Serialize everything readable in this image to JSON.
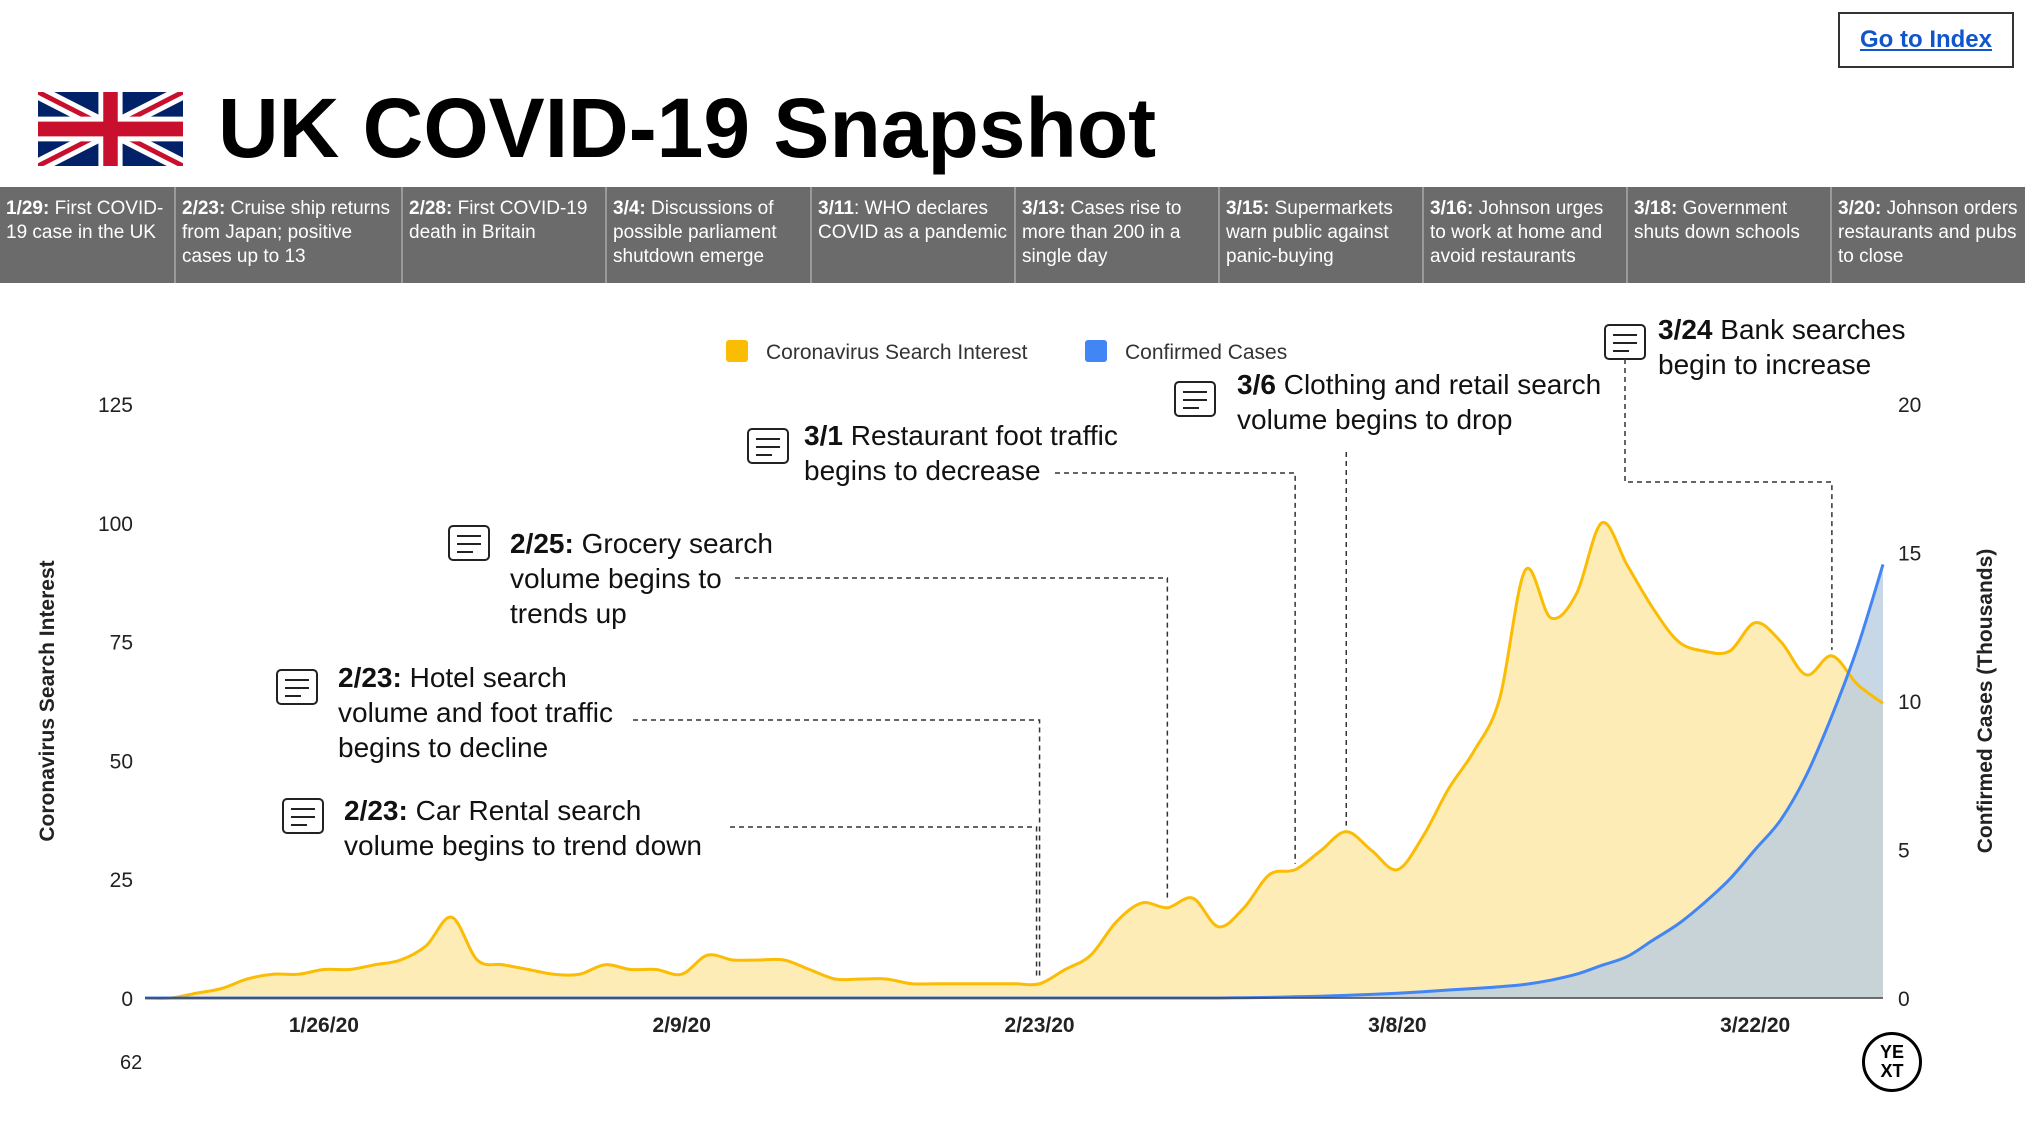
{
  "header": {
    "title": "UK COVID-19 Snapshot",
    "index_link": "Go to Index",
    "flag_icon": "uk-flag-icon"
  },
  "timeline": [
    {
      "date": "1/29:",
      "text": " First COVID-19 case in the UK"
    },
    {
      "date": "2/23:",
      "text": " Cruise ship returns from Japan; positive cases up to 13"
    },
    {
      "date": "2/28:",
      "text": " First COVID-19 death in Britain"
    },
    {
      "date": "3/4:",
      "text": " Discussions of possible parliament shutdown emerge"
    },
    {
      "date": "3/11",
      "text": ": WHO declares COVID as a pandemic"
    },
    {
      "date": "3/13:",
      "text": " Cases rise to more than 200 in a single day"
    },
    {
      "date": "3/15:",
      "text": " Supermarkets warn public against panic-buying"
    },
    {
      "date": "3/16:",
      "text": " Johnson urges to work at home and avoid restaurants"
    },
    {
      "date": "3/18:",
      "text": " Government shuts down schools"
    },
    {
      "date": "3/20:",
      "text": " Johnson orders restaurants and pubs to close"
    }
  ],
  "footer": {
    "slide_number": "62",
    "logo_line1": "YE",
    "logo_line2": "XT"
  },
  "chart_data": {
    "type": "area",
    "title": "",
    "colors": {
      "search": "#fbbc04",
      "search_fill": "#fde9a8",
      "cases": "#4285f4",
      "cases_fill": "#b9cde0"
    },
    "legend": [
      {
        "name": "Coronavirus Search Interest",
        "color": "#fbbc04"
      },
      {
        "name": "Confirmed Cases",
        "color": "#4285f4"
      }
    ],
    "legend_position": "top",
    "ylabel": "Coronavirus Search Interest",
    "ylabel_right": "Confirmed Cases (Thousands)",
    "ylim": [
      0,
      125
    ],
    "ylim_right": [
      0,
      20
    ],
    "yticks": [
      "0",
      "25",
      "50",
      "75",
      "100",
      "125"
    ],
    "yticks_right": [
      "0",
      "5",
      "10",
      "15",
      "20"
    ],
    "x_tick_labels": [
      {
        "label": "1/26/20",
        "day": 7
      },
      {
        "label": "2/9/20",
        "day": 21
      },
      {
        "label": "2/23/20",
        "day": 35
      },
      {
        "label": "3/8/20",
        "day": 49
      },
      {
        "label": "3/22/20",
        "day": 63
      }
    ],
    "x_range": [
      0,
      68
    ],
    "series": [
      {
        "name": "Coronavirus Search Interest",
        "axis": "left",
        "x": [
          0,
          1,
          2,
          3,
          4,
          5,
          6,
          7,
          8,
          9,
          10,
          11,
          12,
          13,
          14,
          15,
          16,
          17,
          18,
          19,
          20,
          21,
          22,
          23,
          24,
          25,
          26,
          27,
          28,
          29,
          30,
          31,
          32,
          33,
          34,
          35,
          36,
          37,
          38,
          39,
          40,
          41,
          42,
          43,
          44,
          45,
          46,
          47,
          48,
          49,
          50,
          51,
          52,
          53,
          54,
          55,
          56,
          57,
          58,
          59,
          60,
          61,
          62,
          63,
          64,
          65,
          66,
          67,
          68
        ],
        "values": [
          0,
          0,
          1,
          2,
          4,
          5,
          5,
          6,
          6,
          7,
          8,
          11,
          17,
          8,
          7,
          6,
          5,
          5,
          7,
          6,
          6,
          5,
          9,
          8,
          8,
          8,
          6,
          4,
          4,
          4,
          3,
          3,
          3,
          3,
          3,
          3,
          6,
          9,
          16,
          20,
          19,
          21,
          15,
          19,
          26,
          27,
          31,
          35,
          31,
          27,
          34,
          44,
          52,
          63,
          90,
          80,
          85,
          100,
          91,
          82,
          75,
          73,
          73,
          79,
          75,
          68,
          72,
          66,
          62
        ]
      },
      {
        "name": "Confirmed Cases",
        "axis": "right",
        "x": [
          0,
          1,
          2,
          3,
          4,
          5,
          6,
          7,
          8,
          9,
          10,
          11,
          12,
          13,
          14,
          15,
          16,
          17,
          18,
          19,
          20,
          21,
          22,
          23,
          24,
          25,
          26,
          27,
          28,
          29,
          30,
          31,
          32,
          33,
          34,
          35,
          36,
          37,
          38,
          39,
          40,
          41,
          42,
          43,
          44,
          45,
          46,
          47,
          48,
          49,
          50,
          51,
          52,
          53,
          54,
          55,
          56,
          57,
          58,
          59,
          60,
          61,
          62,
          63,
          64,
          65,
          66,
          67,
          68
        ],
        "values": [
          0,
          0,
          0,
          0,
          0,
          0,
          0,
          0,
          0,
          0,
          0,
          0,
          0,
          0,
          0,
          0,
          0,
          0,
          0,
          0,
          0,
          0,
          0,
          0,
          0,
          0,
          0,
          0,
          0,
          0,
          0,
          0,
          0,
          0,
          0,
          0,
          0,
          0,
          0,
          0,
          0,
          0,
          0,
          0.01,
          0.02,
          0.04,
          0.06,
          0.09,
          0.12,
          0.16,
          0.21,
          0.27,
          0.32,
          0.38,
          0.46,
          0.6,
          0.8,
          1.1,
          1.4,
          1.95,
          2.5,
          3.2,
          4.0,
          5.0,
          6.0,
          7.5,
          9.5,
          11.8,
          14.6
        ]
      }
    ],
    "annotations": [
      {
        "icon": "shopping-cart-icon",
        "bold": "2/25:",
        "text": " Grocery search",
        "line2": "volume begins to",
        "line3": "trends up",
        "day": 40
      },
      {
        "icon": "hotel-icon",
        "bold": "2/23:",
        "text": " Hotel search",
        "line2": "volume and foot traffic",
        "line3": "begins to decline",
        "day": 35
      },
      {
        "icon": "car-rental-icon",
        "bold": "2/23:",
        "text": " Car Rental search",
        "line2": "volume begins to trend down",
        "line3": "",
        "day": 35
      },
      {
        "icon": "restaurant-icon",
        "bold": "3/1",
        "text": " Restaurant foot traffic",
        "line2": "begins to decrease",
        "line3": "",
        "day": 45
      },
      {
        "icon": "clothing-icon",
        "bold": "3/6",
        "text": " Clothing and retail search",
        "line2": "volume begins to drop",
        "line3": "",
        "day": 47
      },
      {
        "icon": "bank-icon",
        "bold": "3/24",
        "text": " Bank searches",
        "line2": "begin to increase",
        "line3": "",
        "day": 66
      }
    ]
  }
}
